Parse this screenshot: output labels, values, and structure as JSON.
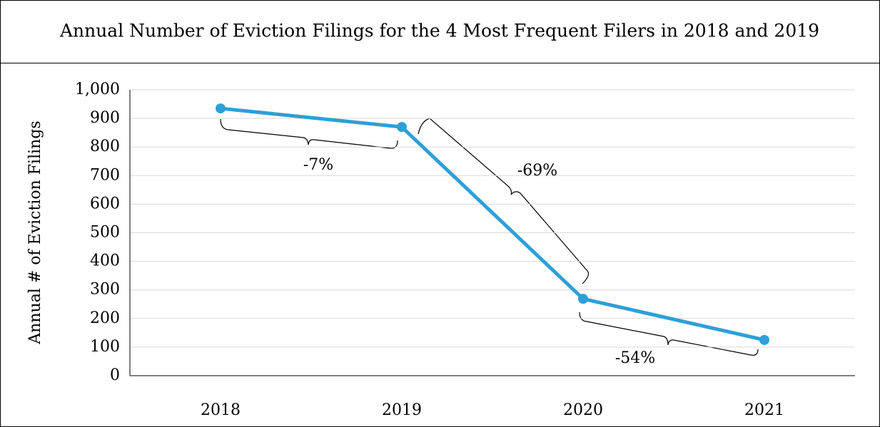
{
  "chart_data": {
    "type": "line",
    "title": "Annual Number of Eviction Filings for the 4 Most Frequent Filers in 2018 and 2019",
    "y_label": "Annual # of Eviction Filings",
    "categories": [
      "2018",
      "2019",
      "2020",
      "2021"
    ],
    "series": [
      {
        "name": "Eviction Filings",
        "color": "#2e9fd8",
        "values": [
          935,
          870,
          269,
          125
        ]
      }
    ],
    "ylim": [
      0,
      1000
    ],
    "yticks": [
      0,
      100,
      200,
      300,
      400,
      500,
      600,
      700,
      800,
      900,
      {
        "value": 1000,
        "label": "1,000"
      }
    ],
    "grid": true,
    "annotations": [
      "-7%",
      "-69%",
      "-54%"
    ]
  }
}
